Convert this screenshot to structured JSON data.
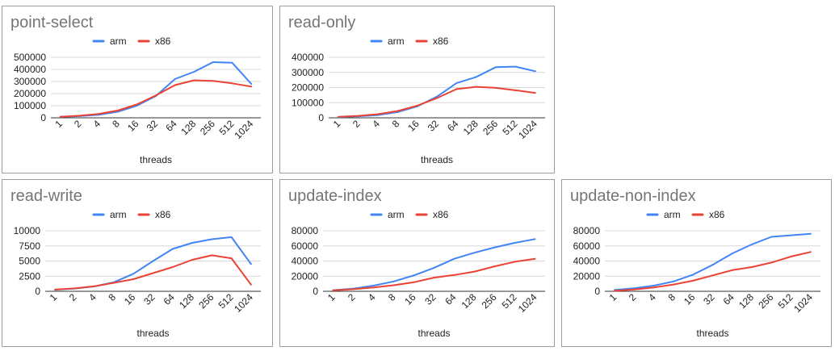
{
  "chart_data": [
    {
      "type": "line",
      "title": "point-select",
      "xlabel": "threads",
      "categories": [
        "1",
        "2",
        "4",
        "8",
        "16",
        "32",
        "64",
        "128",
        "256",
        "512",
        "1024"
      ],
      "yticks": [
        "0",
        "100000",
        "200000",
        "300000",
        "400000",
        "500000"
      ],
      "ylim": [
        0,
        500000
      ],
      "grid": true,
      "legend_position": "top",
      "series": [
        {
          "name": "arm",
          "color": "#4285f4",
          "values": [
            8000,
            14000,
            25000,
            50000,
            100000,
            180000,
            320000,
            380000,
            460000,
            455000,
            280000
          ]
        },
        {
          "name": "x86",
          "color": "#ea4335",
          "values": [
            9000,
            17000,
            32000,
            60000,
            110000,
            185000,
            270000,
            310000,
            305000,
            285000,
            258000
          ]
        }
      ]
    },
    {
      "type": "line",
      "title": "read-only",
      "xlabel": "threads",
      "categories": [
        "1",
        "2",
        "4",
        "8",
        "16",
        "32",
        "64",
        "128",
        "256",
        "512",
        "1024"
      ],
      "yticks": [
        "0",
        "100000",
        "200000",
        "300000",
        "400000"
      ],
      "ylim": [
        0,
        400000
      ],
      "grid": true,
      "legend_position": "top",
      "series": [
        {
          "name": "arm",
          "color": "#4285f4",
          "values": [
            5000,
            10000,
            18000,
            38000,
            75000,
            140000,
            230000,
            270000,
            335000,
            338000,
            308000
          ]
        },
        {
          "name": "x86",
          "color": "#ea4335",
          "values": [
            7000,
            13000,
            24000,
            45000,
            80000,
            130000,
            190000,
            205000,
            198000,
            182000,
            165000
          ]
        }
      ]
    },
    {
      "type": "line",
      "title": "read-write",
      "xlabel": "threads",
      "categories": [
        "1",
        "2",
        "4",
        "8",
        "16",
        "32",
        "64",
        "128",
        "256",
        "512",
        "1024"
      ],
      "yticks": [
        "0",
        "2500",
        "5000",
        "7500",
        "10000"
      ],
      "ylim": [
        0,
        10000
      ],
      "grid": true,
      "legend_position": "top",
      "series": [
        {
          "name": "arm",
          "color": "#4285f4",
          "values": [
            250,
            450,
            800,
            1500,
            2900,
            5000,
            7000,
            8000,
            8600,
            8950,
            4500
          ]
        },
        {
          "name": "x86",
          "color": "#ea4335",
          "values": [
            280,
            480,
            820,
            1400,
            2000,
            3000,
            4000,
            5200,
            5950,
            5450,
            1100
          ]
        }
      ]
    },
    {
      "type": "line",
      "title": "update-index",
      "xlabel": "threads",
      "categories": [
        "1",
        "2",
        "4",
        "8",
        "16",
        "32",
        "64",
        "128",
        "256",
        "512",
        "1024"
      ],
      "yticks": [
        "0",
        "20000",
        "40000",
        "60000",
        "80000"
      ],
      "ylim": [
        0,
        80000
      ],
      "grid": true,
      "legend_position": "top",
      "series": [
        {
          "name": "arm",
          "color": "#4285f4",
          "values": [
            1500,
            3500,
            7500,
            13000,
            21000,
            31000,
            43000,
            51000,
            58000,
            64000,
            69000
          ]
        },
        {
          "name": "x86",
          "color": "#ea4335",
          "values": [
            1200,
            2800,
            5000,
            8000,
            12000,
            18000,
            21500,
            26000,
            33000,
            39000,
            43000
          ]
        }
      ]
    },
    {
      "type": "line",
      "title": "update-non-index",
      "xlabel": "threads",
      "categories": [
        "1",
        "2",
        "4",
        "8",
        "16",
        "32",
        "64",
        "128",
        "256",
        "512",
        "1024"
      ],
      "yticks": [
        "0",
        "20000",
        "40000",
        "60000",
        "80000"
      ],
      "ylim": [
        0,
        80000
      ],
      "grid": true,
      "legend_position": "top",
      "series": [
        {
          "name": "arm",
          "color": "#4285f4",
          "values": [
            1800,
            4000,
            7500,
            13000,
            22000,
            35000,
            50000,
            62000,
            72000,
            74000,
            76000
          ]
        },
        {
          "name": "x86",
          "color": "#ea4335",
          "values": [
            800,
            2500,
            5000,
            9000,
            14000,
            21000,
            28000,
            32000,
            38000,
            46000,
            52000
          ]
        }
      ]
    }
  ]
}
